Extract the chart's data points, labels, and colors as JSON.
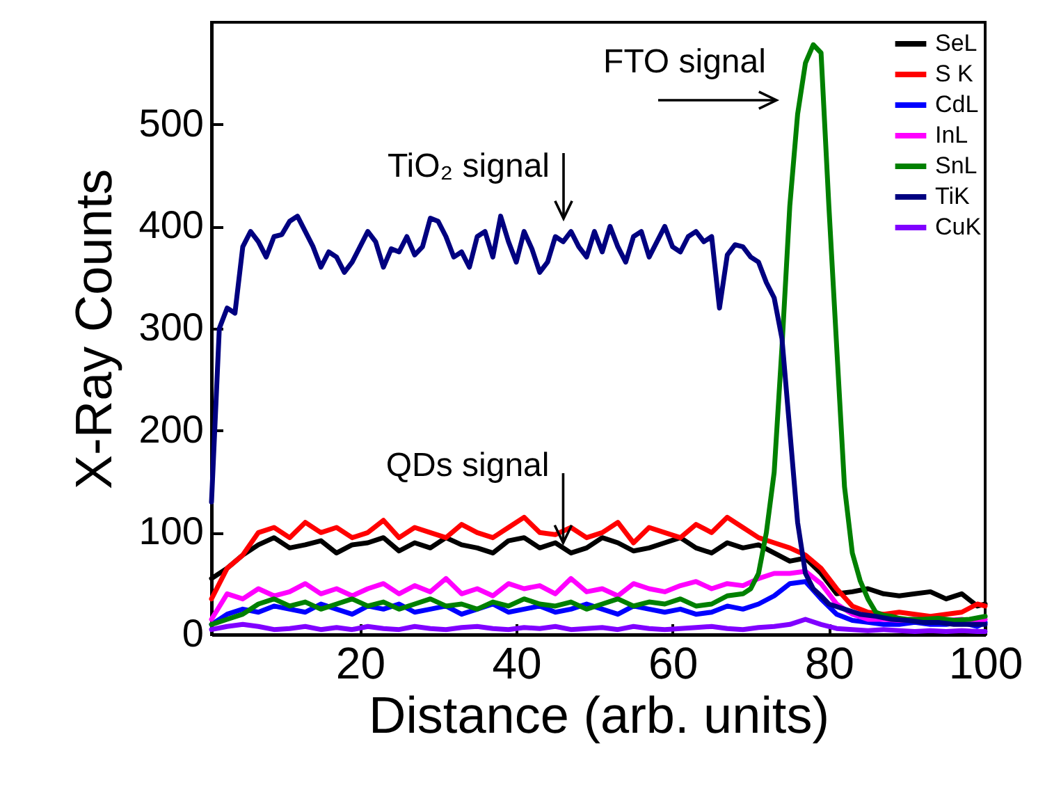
{
  "chart_data": {
    "type": "line",
    "xlabel": "Distance (arb. units)",
    "ylabel": "X-Ray Counts",
    "xlim": [
      1,
      100
    ],
    "ylim": [
      0,
      600
    ],
    "xticks": [
      20,
      40,
      60,
      80,
      100
    ],
    "yticks": [
      0,
      100,
      200,
      300,
      400,
      500
    ],
    "grid": false,
    "legend": "top right",
    "line_style": "solid",
    "marker": "none",
    "x": [
      1,
      3,
      5,
      7,
      9,
      11,
      13,
      15,
      17,
      19,
      21,
      23,
      25,
      27,
      29,
      31,
      33,
      35,
      37,
      39,
      41,
      43,
      45,
      47,
      49,
      51,
      53,
      55,
      57,
      59,
      61,
      63,
      65,
      67,
      69,
      71,
      73,
      75,
      77,
      79,
      81,
      83,
      85,
      87,
      89,
      91,
      93,
      95,
      97,
      99,
      100
    ],
    "series": [
      {
        "name": "SeL",
        "color": "#000000",
        "values": [
          55,
          65,
          78,
          88,
          95,
          85,
          88,
          92,
          80,
          88,
          90,
          95,
          82,
          90,
          85,
          95,
          88,
          85,
          80,
          92,
          95,
          85,
          90,
          80,
          85,
          95,
          90,
          82,
          85,
          90,
          95,
          85,
          80,
          90,
          85,
          88,
          80,
          72,
          75,
          60,
          40,
          42,
          45,
          40,
          38,
          40,
          42,
          35,
          40,
          28,
          30
        ]
      },
      {
        "name": "S K",
        "color": "#ff0000",
        "values": [
          35,
          65,
          78,
          100,
          105,
          95,
          110,
          100,
          105,
          95,
          100,
          112,
          95,
          105,
          100,
          95,
          108,
          100,
          95,
          105,
          115,
          100,
          98,
          105,
          95,
          100,
          110,
          90,
          105,
          100,
          95,
          108,
          100,
          115,
          105,
          95,
          90,
          85,
          78,
          65,
          45,
          28,
          22,
          20,
          22,
          20,
          18,
          20,
          22,
          30,
          28
        ]
      },
      {
        "name": "CdL",
        "color": "#0000ff",
        "values": [
          10,
          20,
          25,
          22,
          28,
          25,
          22,
          30,
          25,
          20,
          28,
          25,
          30,
          22,
          25,
          28,
          20,
          25,
          30,
          22,
          25,
          28,
          22,
          25,
          30,
          25,
          20,
          28,
          25,
          22,
          25,
          20,
          22,
          28,
          25,
          30,
          38,
          50,
          52,
          35,
          20,
          14,
          12,
          10,
          10,
          12,
          10,
          10,
          12,
          8,
          12
        ]
      },
      {
        "name": "InL",
        "color": "#ff00ff",
        "values": [
          15,
          40,
          35,
          45,
          38,
          42,
          50,
          40,
          45,
          38,
          45,
          50,
          40,
          48,
          42,
          55,
          40,
          45,
          38,
          50,
          45,
          48,
          40,
          55,
          42,
          45,
          38,
          50,
          45,
          42,
          48,
          52,
          45,
          50,
          48,
          55,
          60,
          60,
          62,
          50,
          30,
          20,
          15,
          15,
          14,
          15,
          14,
          14,
          15,
          12,
          15
        ]
      },
      {
        "name": "SnL",
        "color": "#008000",
        "x": [
          1,
          3,
          5,
          7,
          9,
          11,
          13,
          15,
          17,
          19,
          21,
          23,
          25,
          27,
          29,
          31,
          33,
          35,
          37,
          39,
          41,
          43,
          45,
          47,
          49,
          51,
          53,
          55,
          57,
          59,
          61,
          63,
          65,
          67,
          69,
          70,
          71,
          72,
          73,
          74,
          75,
          76,
          77,
          78,
          79,
          80,
          81,
          82,
          83,
          84,
          85,
          86,
          87,
          88,
          89,
          90,
          92,
          94,
          96,
          98,
          100
        ],
        "values": [
          10,
          15,
          20,
          30,
          35,
          28,
          32,
          25,
          30,
          35,
          28,
          32,
          25,
          30,
          35,
          28,
          30,
          25,
          32,
          28,
          35,
          30,
          28,
          32,
          25,
          30,
          35,
          28,
          32,
          30,
          35,
          28,
          30,
          38,
          40,
          45,
          60,
          100,
          159,
          282,
          420,
          510,
          560,
          578,
          570,
          420,
          282,
          145,
          80,
          53,
          35,
          22,
          19,
          18,
          16,
          15,
          15,
          16,
          14,
          15,
          18
        ]
      },
      {
        "name": "TiK",
        "color": "#000080",
        "x": [
          1,
          2,
          3,
          4,
          5,
          6,
          7,
          8,
          9,
          10,
          11,
          12,
          13,
          14,
          15,
          16,
          17,
          18,
          19,
          20,
          21,
          22,
          23,
          24,
          25,
          26,
          27,
          28,
          29,
          30,
          31,
          32,
          33,
          34,
          35,
          36,
          37,
          38,
          39,
          40,
          41,
          42,
          43,
          44,
          45,
          46,
          47,
          48,
          49,
          50,
          51,
          52,
          53,
          54,
          55,
          56,
          57,
          58,
          59,
          60,
          61,
          62,
          63,
          64,
          65,
          66,
          67,
          68,
          69,
          70,
          71,
          72,
          73,
          74,
          75,
          76,
          77,
          78,
          79,
          80,
          82,
          84,
          86,
          88,
          90,
          92,
          94,
          96,
          98,
          100
        ],
        "values": [
          130,
          300,
          320,
          315,
          380,
          395,
          385,
          370,
          390,
          392,
          405,
          410,
          395,
          380,
          360,
          375,
          370,
          355,
          365,
          380,
          395,
          385,
          360,
          378,
          375,
          390,
          372,
          380,
          408,
          405,
          390,
          370,
          375,
          360,
          390,
          395,
          370,
          410,
          385,
          365,
          395,
          378,
          355,
          365,
          390,
          385,
          395,
          380,
          370,
          395,
          375,
          400,
          380,
          365,
          390,
          395,
          370,
          385,
          400,
          380,
          375,
          390,
          395,
          385,
          390,
          320,
          372,
          382,
          380,
          370,
          365,
          345,
          330,
          290,
          200,
          110,
          60,
          45,
          38,
          30,
          25,
          20,
          18,
          15,
          14,
          12,
          12,
          10,
          10,
          10
        ]
      },
      {
        "name": "CuK",
        "color": "#8000ff",
        "values": [
          5,
          8,
          10,
          8,
          5,
          6,
          8,
          5,
          7,
          5,
          8,
          6,
          5,
          8,
          6,
          5,
          7,
          8,
          6,
          5,
          7,
          6,
          8,
          5,
          6,
          7,
          5,
          8,
          6,
          5,
          6,
          7,
          8,
          6,
          5,
          7,
          8,
          10,
          15,
          10,
          6,
          5,
          4,
          5,
          4,
          3,
          4,
          3,
          4,
          3,
          3
        ]
      }
    ],
    "annotations": [
      "FTO signal",
      "TiO₂ signal",
      {
        "text": "QDs signal",
        "x": 46,
        "y": 90
      }
    ]
  }
}
